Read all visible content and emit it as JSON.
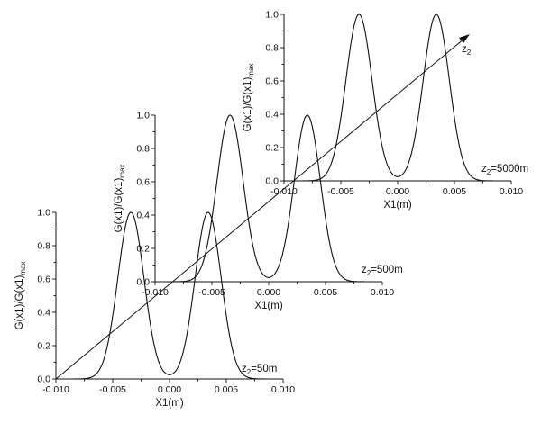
{
  "chart_data": [
    {
      "type": "line",
      "title": "",
      "ylabel": "G(x1)/G(x1)",
      "ylabel_sub": "max",
      "xlabel": "X1(m)",
      "xlim": [
        -0.01,
        0.01
      ],
      "ylim": [
        0.0,
        1.0
      ],
      "x_ticks": [
        "-0.010",
        "-0.005",
        "0.000",
        "0.005",
        "0.010"
      ],
      "y_ticks": [
        "0.0",
        "0.2",
        "0.4",
        "0.6",
        "0.8",
        "1.0"
      ],
      "annotation": {
        "pre": "z",
        "sub": "2",
        "post": "=50m"
      },
      "series": [
        {
          "type": "gaussian-pair",
          "peak_x": 0.0034,
          "sigma": 0.00115,
          "peak_y": 1.0
        }
      ]
    },
    {
      "type": "line",
      "title": "",
      "ylabel": "G(x1)/G(x1)",
      "ylabel_sub": "max",
      "xlabel": "X1(m)",
      "xlim": [
        -0.01,
        0.01
      ],
      "ylim": [
        0.0,
        1.0
      ],
      "x_ticks": [
        "-0.010",
        "-0.005",
        "0.000",
        "0.005",
        "0.010"
      ],
      "y_ticks": [
        "0.0",
        "0.2",
        "0.4",
        "0.6",
        "0.8",
        "1.0"
      ],
      "annotation": {
        "pre": "z",
        "sub": "2",
        "post": "=500m"
      },
      "series": [
        {
          "type": "gaussian-pair",
          "peak_x": 0.0034,
          "sigma": 0.00115,
          "peak_y": 1.0
        }
      ]
    },
    {
      "type": "line",
      "title": "",
      "ylabel": "G(x1)/G(x1)",
      "ylabel_sub": "max",
      "xlabel": "X1(m)",
      "xlim": [
        -0.01,
        0.01
      ],
      "ylim": [
        0.0,
        1.0
      ],
      "x_ticks": [
        "-0.010",
        "-0.005",
        "0.000",
        "0.005",
        "0.010"
      ],
      "y_ticks": [
        "0.0",
        "0.2",
        "0.4",
        "0.6",
        "0.8",
        "1.0"
      ],
      "annotation": {
        "pre": "z",
        "sub": "2",
        "post": "=5000m"
      },
      "series": [
        {
          "type": "gaussian-pair",
          "peak_x": 0.0034,
          "sigma": 0.00115,
          "peak_y": 1.0
        }
      ]
    }
  ],
  "depth_axis": {
    "label": "z",
    "label_sub": "2"
  }
}
